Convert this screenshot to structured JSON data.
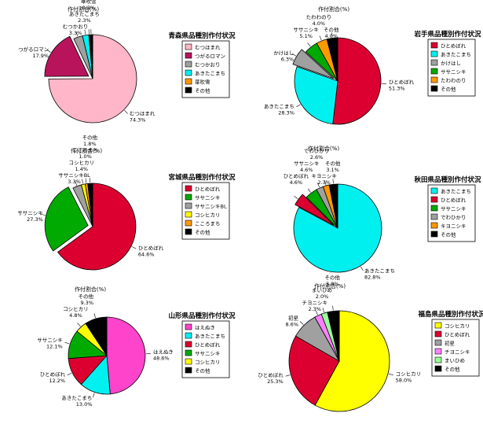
{
  "colors": {
    "pink_light": "#FFB6C8",
    "magenta": "#B8145C",
    "gray": "#A0A0A0",
    "cyan": "#00F0F0",
    "orange": "#FF9900",
    "black": "#000000",
    "red": "#DC0030",
    "green": "#00AA00",
    "yellow": "#FFFF00",
    "hotpink": "#FF44CC",
    "violet": "#FF80FF",
    "lightgreen": "#99FF99"
  },
  "chart_data": [
    {
      "type": "pie",
      "title": "作付割合(%)",
      "legend_title": "青森県品種別作付状況",
      "legend_position": "right",
      "slices": [
        {
          "name": "むつほまれ",
          "value": 74.3,
          "color": "pink_light",
          "label": "むつほまれ",
          "pct": "74.3%"
        },
        {
          "name": "つがるロマン",
          "value": 17.9,
          "color": "magenta",
          "label": "つがるロマン",
          "pct": "17.9%",
          "explode": true
        },
        {
          "name": "むつかおり",
          "value": 3.3,
          "color": "gray",
          "label": "むつかおり",
          "pct": "3.3%"
        },
        {
          "name": "あきたこまち",
          "value": 2.3,
          "color": "cyan",
          "label": "あきたこまち",
          "pct": "2.3%"
        },
        {
          "name": "華吹雪",
          "value": 0.3,
          "color": "orange",
          "label": "華吹雪",
          "pct": "0.3%"
        },
        {
          "name": "その他",
          "value": 1.1,
          "color": "black",
          "label": "その他",
          "pct": "1.1%"
        }
      ]
    },
    {
      "type": "pie",
      "title": "作付割合(%)",
      "legend_title": "岩手県品種別作付状況",
      "legend_position": "right",
      "slices": [
        {
          "name": "ひとめぼれ",
          "value": 51.3,
          "color": "red",
          "label": "ひとめぼれ",
          "pct": "51.3%"
        },
        {
          "name": "あきたこまち",
          "value": 28.3,
          "color": "cyan",
          "label": "あきたこまち",
          "pct": "28.3%"
        },
        {
          "name": "かけはし",
          "value": 6.3,
          "color": "gray",
          "label": "かけはし",
          "pct": "6.3%",
          "explode": true
        },
        {
          "name": "ササニシキ",
          "value": 5.1,
          "color": "green",
          "label": "ササニシキ",
          "pct": "5.1%"
        },
        {
          "name": "たわわのり",
          "value": 4.0,
          "color": "orange",
          "label": "たわわのり",
          "pct": "4.0%"
        },
        {
          "name": "その他",
          "value": 4.0,
          "color": "black",
          "label": "その他",
          "pct": "4.0%"
        }
      ]
    },
    {
      "type": "pie",
      "title": "作付割合(%)",
      "legend_title": "宮城県品種別作付状況",
      "legend_position": "right",
      "slices": [
        {
          "name": "ひとめぼれ",
          "value": 64.6,
          "color": "red",
          "label": "ひとめぼれ",
          "pct": "64.6%"
        },
        {
          "name": "ササニシキ",
          "value": 27.3,
          "color": "green",
          "label": "ササニシキ",
          "pct": "27.3%",
          "explode": true
        },
        {
          "name": "ササニシキBL",
          "value": 3.3,
          "color": "gray",
          "label": "ササニシキBL",
          "pct": "3.3%"
        },
        {
          "name": "コシヒカリ",
          "value": 1.4,
          "color": "yellow",
          "label": "コシヒカリ",
          "pct": "1.4%"
        },
        {
          "name": "こころまち",
          "value": 1.0,
          "color": "orange",
          "label": "こころまち",
          "pct": "1.0%"
        },
        {
          "name": "その他",
          "value": 1.8,
          "color": "black",
          "label": "その他",
          "pct": "1.8%"
        }
      ]
    },
    {
      "type": "pie",
      "title": "作付割合(%)",
      "legend_title": "秋田県品種別作付状況",
      "legend_position": "right",
      "slices": [
        {
          "name": "あきたこまち",
          "value": 82.8,
          "color": "cyan",
          "label": "あきたこまち",
          "pct": "82.8%"
        },
        {
          "name": "ひとめぼれ",
          "value": 4.6,
          "color": "red",
          "label": "ひとめぼれ",
          "pct": "4.6%",
          "explode": true
        },
        {
          "name": "ササニシキ",
          "value": 4.6,
          "color": "green",
          "label": "ササニシキ",
          "pct": "4.6%"
        },
        {
          "name": "でわひかり",
          "value": 2.6,
          "color": "gray",
          "label": "でわひかり",
          "pct": "2.6%"
        },
        {
          "name": "キヨニシキ",
          "value": 2.3,
          "color": "orange",
          "label": "キヨニシキ",
          "pct": "2.3%"
        },
        {
          "name": "その他",
          "value": 3.1,
          "color": "black",
          "label": "その他",
          "pct": "3.1%"
        }
      ]
    },
    {
      "type": "pie",
      "title": "作付割合(%)",
      "legend_title": "山形県品種別作付状況",
      "legend_position": "right",
      "slices": [
        {
          "name": "はえぬき",
          "value": 48.6,
          "color": "hotpink",
          "label": "はえぬき",
          "pct": "48.6%"
        },
        {
          "name": "あきたこまち",
          "value": 13.0,
          "color": "cyan",
          "label": "あきたこまち",
          "pct": "13.0%"
        },
        {
          "name": "ひとめぼれ",
          "value": 12.2,
          "color": "red",
          "label": "ひとめぼれ",
          "pct": "12.2%"
        },
        {
          "name": "ササニシキ",
          "value": 12.1,
          "color": "green",
          "label": "ササニシキ",
          "pct": "12.1%"
        },
        {
          "name": "コシヒカリ",
          "value": 4.8,
          "color": "yellow",
          "label": "コシヒカリ",
          "pct": "4.8%"
        },
        {
          "name": "その他",
          "value": 9.3,
          "color": "black",
          "label": "その他",
          "pct": "9.3%"
        }
      ]
    },
    {
      "type": "pie",
      "title": "作付割合(%)",
      "legend_title": "福島県品種別作付状況",
      "legend_position": "right",
      "slices": [
        {
          "name": "コシヒカリ",
          "value": 58.0,
          "color": "yellow",
          "label": "コシヒカリ",
          "pct": "58.0%"
        },
        {
          "name": "ひとめぼれ",
          "value": 25.3,
          "color": "red",
          "label": "ひとめぼれ",
          "pct": "25.3%"
        },
        {
          "name": "初星",
          "value": 8.6,
          "color": "gray",
          "label": "初星",
          "pct": "8.6%"
        },
        {
          "name": "チヨニシキ",
          "value": 2.3,
          "color": "violet",
          "label": "チヨニシキ",
          "pct": "2.3%"
        },
        {
          "name": "まいひめ",
          "value": 2.0,
          "color": "lightgreen",
          "label": "まいひめ",
          "pct": "2.0%"
        },
        {
          "name": "その他",
          "value": 3.8,
          "color": "black",
          "label": "その他",
          "pct": "3.8%"
        }
      ]
    }
  ]
}
